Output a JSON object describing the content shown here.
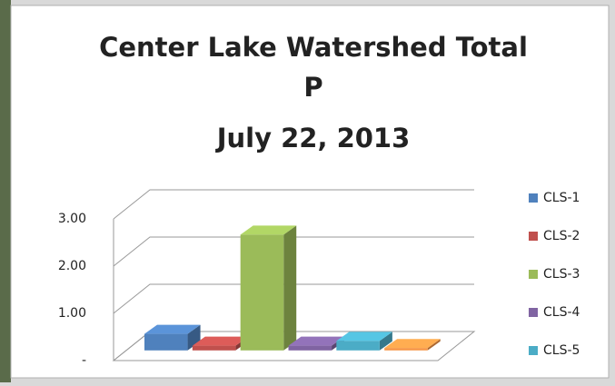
{
  "chart_data": {
    "type": "bar3d",
    "title": [
      "Center Lake Watershed Total",
      "P",
      "July 22, 2013"
    ],
    "series": [
      {
        "name": "CLS-1",
        "color": "#4f81bd",
        "values": [
          0.35
        ]
      },
      {
        "name": "CLS-2",
        "color": "#c0504d",
        "values": [
          0.1
        ]
      },
      {
        "name": "CLS-3",
        "color": "#9bbb59",
        "values": [
          2.45
        ]
      },
      {
        "name": "CLS-4",
        "color": "#8064a2",
        "values": [
          0.1
        ]
      },
      {
        "name": "CLS-5",
        "color": "#4bacc6",
        "values": [
          0.2
        ]
      },
      {
        "name": null,
        "color": "#f79646",
        "values": [
          0.05
        ]
      }
    ],
    "ylim": [
      0,
      3
    ],
    "yticks": [
      {
        "value": 0,
        "label": "-"
      },
      {
        "value": 1,
        "label": "1.00"
      },
      {
        "value": 2,
        "label": "2.00"
      },
      {
        "value": 3,
        "label": "3.00"
      }
    ],
    "grid": true,
    "legend": "right"
  }
}
